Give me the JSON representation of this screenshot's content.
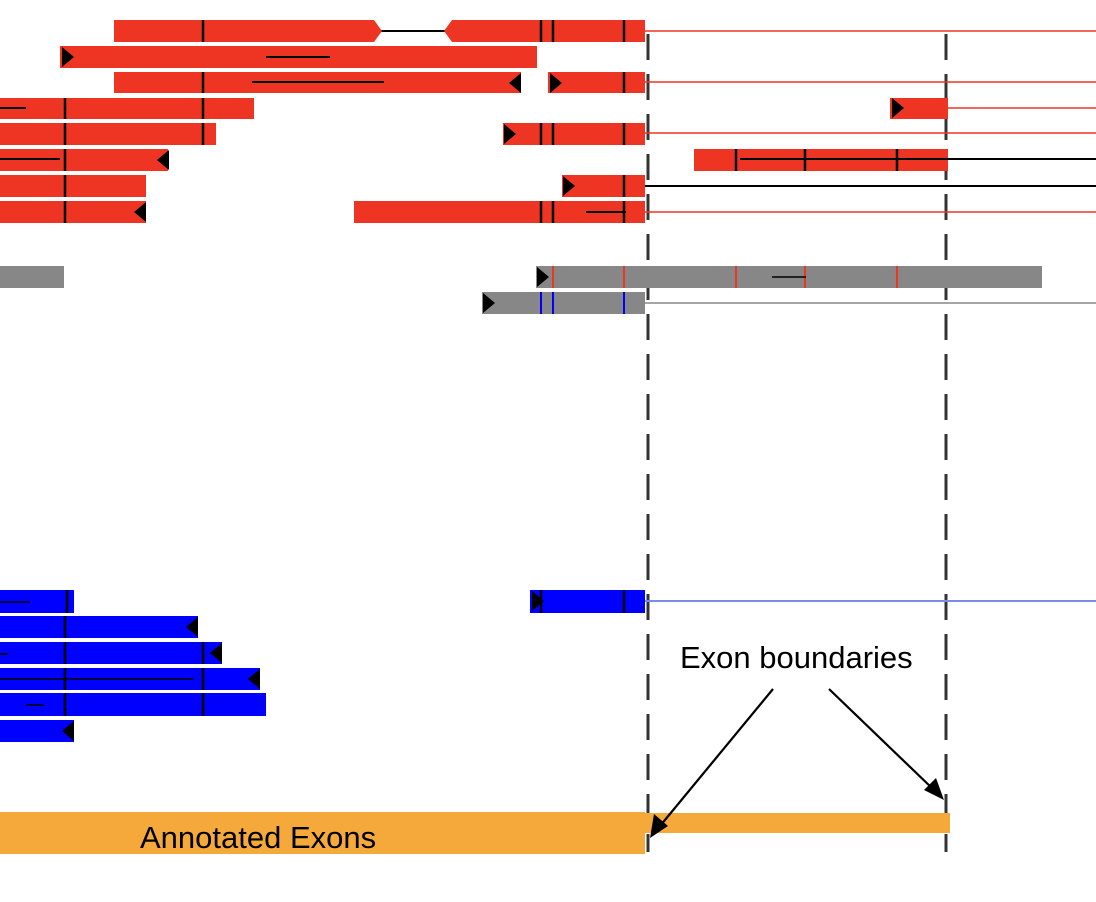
{
  "labels": {
    "exon_boundaries": "Exon boundaries",
    "annotated_exons": "Annotated Exons"
  },
  "colors": {
    "red_reads": "#ee3524",
    "red_line": "#ee3524",
    "gray_reads": "#878787",
    "blue_reads": "#0000ff",
    "blue_line": "#7b8bea",
    "exon": "#f5a93a",
    "marker": "#000000",
    "dashed_line": "#333333"
  }
}
